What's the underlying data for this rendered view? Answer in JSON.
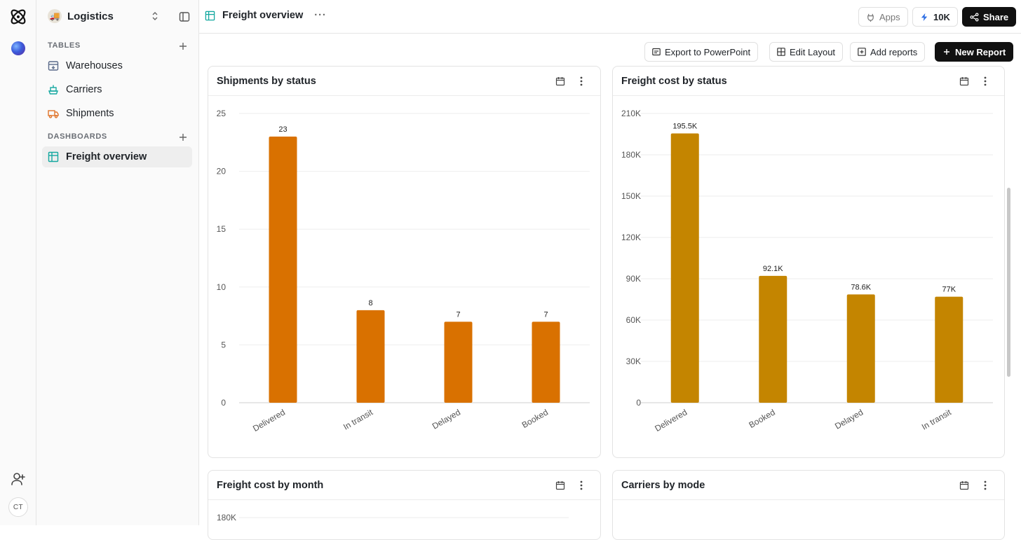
{
  "rail": {
    "avatar_initials": "CT"
  },
  "sidebar": {
    "workspace_name": "Logistics",
    "tables_title": "TABLES",
    "tables": [
      {
        "label": "Warehouses",
        "color": "#5b6b8a"
      },
      {
        "label": "Carriers",
        "color": "#14a8a0"
      },
      {
        "label": "Shipments",
        "color": "#e0742a"
      }
    ],
    "dashboards_title": "DASHBOARDS",
    "dashboards": [
      {
        "label": "Freight overview",
        "color": "#14a8a0"
      }
    ]
  },
  "topbar": {
    "breadcrumb": "Freight overview",
    "apps_label": "Apps",
    "credits_label": "10K",
    "share_label": "Share"
  },
  "actions": {
    "export_label": "Export to PowerPoint",
    "edit_layout_label": "Edit Layout",
    "add_reports_label": "Add reports",
    "new_report_label": "New Report"
  },
  "cards": [
    {
      "title": "Shipments by status"
    },
    {
      "title": "Freight cost by status"
    },
    {
      "title": "Freight cost by month"
    },
    {
      "title": "Carriers by mode"
    }
  ],
  "chart_data": [
    {
      "type": "bar",
      "title": "Shipments by status",
      "categories": [
        "Delivered",
        "In transit",
        "Delayed",
        "Booked"
      ],
      "values": [
        23,
        8,
        7,
        7
      ],
      "value_labels": [
        "23",
        "8",
        "7",
        "7"
      ],
      "ylim": [
        0,
        25
      ],
      "yticks": [
        "0",
        "5",
        "10",
        "15",
        "20",
        "25"
      ],
      "color": "#d97100",
      "grid": true
    },
    {
      "type": "bar",
      "title": "Freight cost by status",
      "categories": [
        "Delivered",
        "Booked",
        "Delayed",
        "In transit"
      ],
      "values": [
        195500,
        92100,
        78600,
        77000
      ],
      "value_labels": [
        "195.5K",
        "92.1K",
        "78.6K",
        "77K"
      ],
      "ylim": [
        0,
        210000
      ],
      "yticks": [
        "0",
        "30K",
        "60K",
        "90K",
        "120K",
        "150K",
        "180K",
        "210K"
      ],
      "color": "#c48500",
      "grid": true
    },
    {
      "type": "bar",
      "title": "Freight cost by month",
      "categories": [],
      "values": [],
      "yticks": [
        "180K"
      ]
    }
  ]
}
